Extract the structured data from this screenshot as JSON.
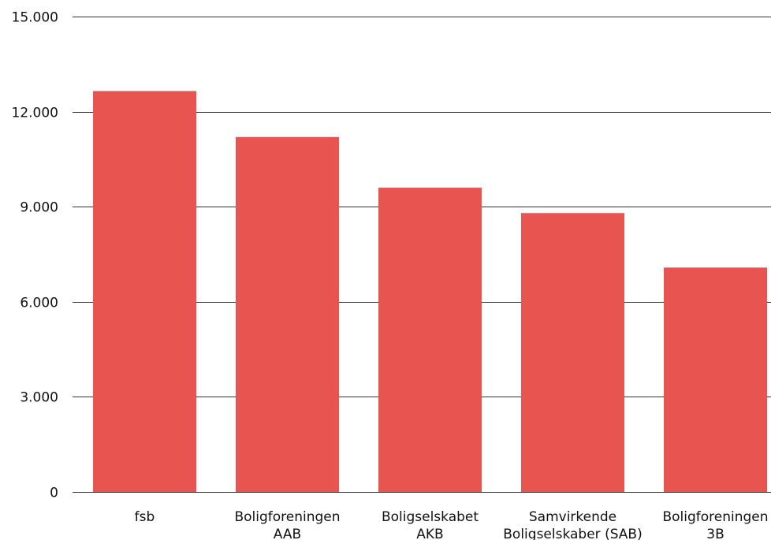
{
  "chart_data": {
    "type": "bar",
    "title": "",
    "xlabel": "",
    "ylabel": "",
    "categories": [
      [
        "fsb"
      ],
      [
        "Boligforeningen",
        "AAB"
      ],
      [
        "Boligselskabet",
        "AKB"
      ],
      [
        "Samvirkende",
        "Boligselskaber (SAB)"
      ],
      [
        "Boligforeningen",
        "3B"
      ]
    ],
    "values": [
      12650,
      11200,
      9600,
      8800,
      7080
    ],
    "ylim": [
      0,
      15000
    ],
    "y_ticks": [
      0,
      3000,
      6000,
      9000,
      12000,
      15000
    ],
    "y_tick_labels": [
      "0",
      "3.000",
      "6.000",
      "9.000",
      "12.000",
      "15.000"
    ],
    "grid": true,
    "legend": "none",
    "colors": {
      "bar": "#E85550",
      "grid": "#333333",
      "text": "#111111"
    }
  }
}
